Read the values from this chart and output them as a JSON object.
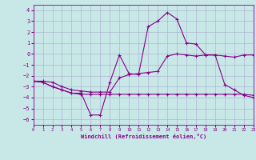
{
  "xlabel": "Windchill (Refroidissement éolien,°C)",
  "background_color": "#c8e8e8",
  "grid_color": "#aaaacc",
  "line_color": "#880088",
  "xlim": [
    0,
    23
  ],
  "ylim": [
    -6.5,
    4.5
  ],
  "yticks": [
    -6,
    -5,
    -4,
    -3,
    -2,
    -1,
    0,
    1,
    2,
    3,
    4
  ],
  "xticks": [
    0,
    1,
    2,
    3,
    4,
    5,
    6,
    7,
    8,
    9,
    10,
    11,
    12,
    13,
    14,
    15,
    16,
    17,
    18,
    19,
    20,
    21,
    22,
    23
  ],
  "line1_x": [
    0,
    1,
    2,
    3,
    4,
    5,
    6,
    7,
    8,
    9,
    10,
    11,
    12,
    13,
    14,
    15,
    16,
    17,
    18,
    19,
    20,
    21,
    22,
    23
  ],
  "line1_y": [
    -2.5,
    -2.6,
    -3.0,
    -3.3,
    -3.6,
    -3.6,
    -5.6,
    -5.6,
    -2.6,
    -0.1,
    -1.8,
    -1.9,
    2.5,
    3.0,
    3.8,
    3.2,
    1.0,
    0.9,
    -0.1,
    -0.1,
    -2.8,
    -3.3,
    -3.8,
    -4.0
  ],
  "line2_x": [
    0,
    1,
    2,
    3,
    4,
    5,
    6,
    7,
    8,
    9,
    10,
    11,
    12,
    13,
    14,
    15,
    16,
    17,
    18,
    19,
    20,
    21,
    22,
    23
  ],
  "line2_y": [
    -2.5,
    -2.5,
    -2.6,
    -3.0,
    -3.3,
    -3.4,
    -3.5,
    -3.5,
    -3.5,
    -2.2,
    -1.9,
    -1.8,
    -1.7,
    -1.6,
    -0.2,
    0.0,
    -0.1,
    -0.2,
    -0.1,
    -0.1,
    -0.2,
    -0.3,
    -0.1,
    -0.1
  ],
  "line3_x": [
    0,
    1,
    2,
    3,
    4,
    5,
    6,
    7,
    8,
    9,
    10,
    11,
    12,
    13,
    14,
    15,
    16,
    17,
    18,
    19,
    20,
    21,
    22,
    23
  ],
  "line3_y": [
    -2.5,
    -2.6,
    -3.0,
    -3.3,
    -3.6,
    -3.7,
    -3.7,
    -3.7,
    -3.7,
    -3.7,
    -3.7,
    -3.7,
    -3.7,
    -3.7,
    -3.7,
    -3.7,
    -3.7,
    -3.7,
    -3.7,
    -3.7,
    -3.7,
    -3.7,
    -3.7,
    -3.8
  ]
}
